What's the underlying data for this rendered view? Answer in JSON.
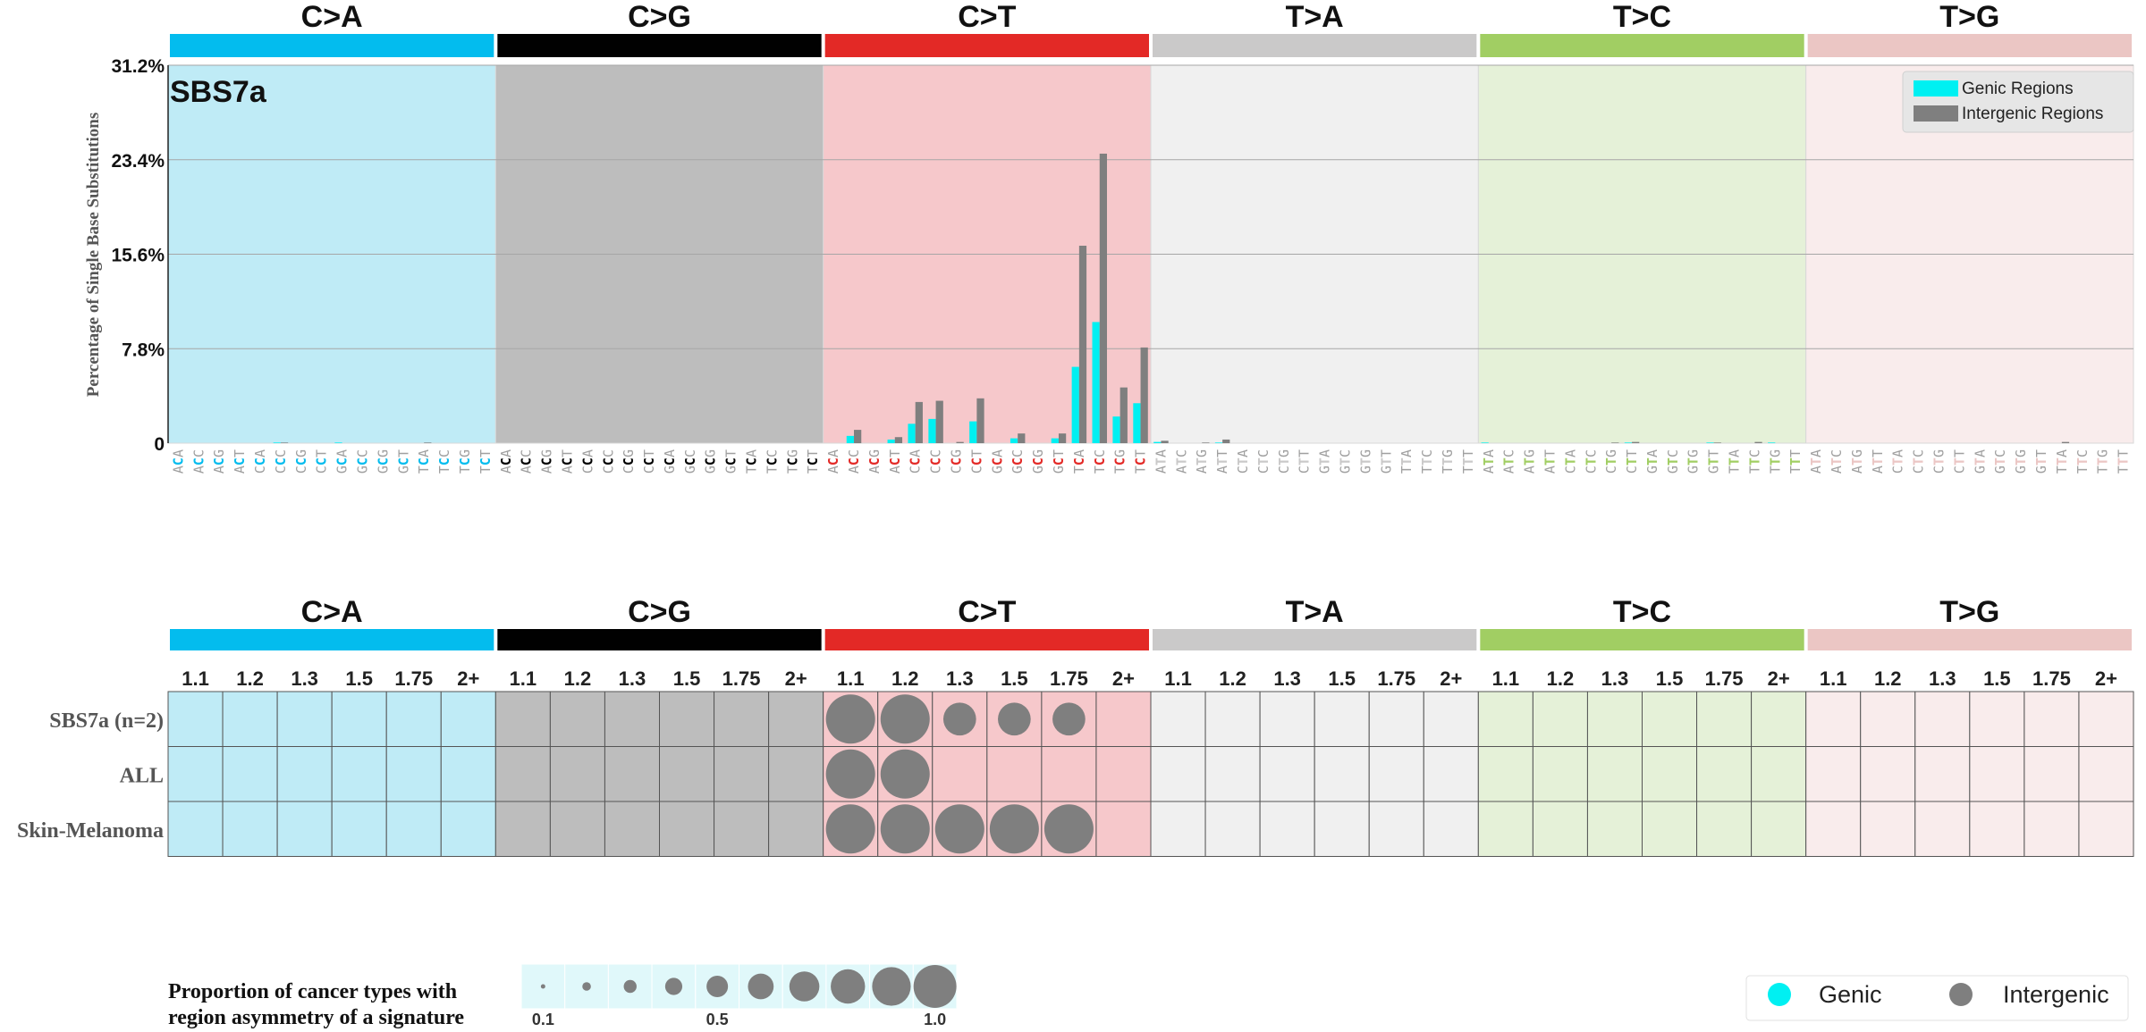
{
  "chart_data": {
    "type": "bar",
    "signature_label": "SBS7a",
    "ylabel": "Percentage of Single Base Substitutions",
    "yticks": [
      "0",
      "7.8%",
      "15.6%",
      "23.4%",
      "31.2%"
    ],
    "ylim": [
      0,
      31.2
    ],
    "grid": true,
    "legend_position": "top-right",
    "mutation_types": [
      {
        "label": "C>A",
        "color": "#03bcee",
        "bg": "#bfebf6",
        "ref": "C"
      },
      {
        "label": "C>G",
        "color": "#010101",
        "bg": "#bdbdbd",
        "ref": "C"
      },
      {
        "label": "C>T",
        "color": "#e32926",
        "bg": "#f6c8cb",
        "ref": "C"
      },
      {
        "label": "T>A",
        "color": "#cac9c9",
        "bg": "#f0f0f0",
        "ref": "T"
      },
      {
        "label": "T>C",
        "color": "#a1ce63",
        "bg": "#e5f1d8",
        "ref": "T"
      },
      {
        "label": "T>G",
        "color": "#ebc6c4",
        "bg": "#f9ecec",
        "ref": "T"
      }
    ],
    "contexts": {
      "C": [
        "ACA",
        "ACC",
        "ACG",
        "ACT",
        "CCA",
        "CCC",
        "CCG",
        "CCT",
        "GCA",
        "GCC",
        "GCG",
        "GCT",
        "TCA",
        "TCC",
        "TCG",
        "TCT"
      ],
      "T": [
        "ATA",
        "ATC",
        "ATG",
        "ATT",
        "CTA",
        "CTC",
        "CTG",
        "CTT",
        "GTA",
        "GTC",
        "GTG",
        "GTT",
        "TTA",
        "TTC",
        "TTG",
        "TTT"
      ]
    },
    "series": [
      {
        "name": "Genic Regions",
        "color": "#00f0f2",
        "values": [
          0,
          0,
          0,
          0,
          0,
          0.05,
          0,
          0,
          0.05,
          0,
          0,
          0,
          0,
          0,
          0,
          0,
          0,
          0,
          0,
          0,
          0,
          0,
          0,
          0,
          0,
          0,
          0,
          0,
          0,
          0,
          0,
          0,
          0,
          0.6,
          0,
          0.3,
          1.6,
          2.0,
          0,
          1.8,
          0,
          0.4,
          0,
          0.4,
          6.3,
          10.0,
          2.2,
          3.3,
          0.1,
          0,
          0,
          0.05,
          0,
          0,
          0,
          0,
          0,
          0,
          0,
          0,
          0,
          0,
          0,
          0,
          0.05,
          0,
          0,
          0,
          0,
          0,
          0,
          0.05,
          0,
          0,
          0,
          0.05,
          0,
          0,
          0.05,
          0,
          0,
          0,
          0,
          0,
          0,
          0,
          0,
          0,
          0,
          0,
          0,
          0,
          0,
          0,
          0,
          0
        ]
      },
      {
        "name": "Intergenic Regions",
        "color": "#7f7f7f",
        "values": [
          0,
          0,
          0,
          0,
          0,
          0.05,
          0,
          0,
          0,
          0,
          0,
          0,
          0.05,
          0,
          0,
          0,
          0,
          0,
          0,
          0,
          0,
          0,
          0,
          0,
          0,
          0,
          0,
          0,
          0,
          0,
          0,
          0,
          0,
          1.1,
          0,
          0.5,
          3.4,
          3.5,
          0.1,
          3.7,
          0,
          0.8,
          0,
          0.8,
          16.3,
          23.9,
          4.6,
          7.9,
          0.2,
          0,
          0.05,
          0.3,
          0,
          0,
          0,
          0,
          0,
          0,
          0,
          0,
          0,
          0,
          0,
          0,
          0,
          0,
          0,
          0,
          0,
          0,
          0.05,
          0.1,
          0,
          0,
          0,
          0.05,
          0,
          0.1,
          0,
          0,
          0,
          0,
          0,
          0,
          0,
          0,
          0,
          0,
          0,
          0,
          0,
          0,
          0.1,
          0,
          0,
          0
        ]
      }
    ],
    "grid_panel": {
      "columns": [
        "1.1",
        "1.2",
        "1.3",
        "1.5",
        "1.75",
        "2+"
      ],
      "rows": [
        {
          "label": "SBS7a (n=2)",
          "ct": [
            0.9,
            0.9,
            0.4,
            0.4,
            0.4,
            0
          ]
        },
        {
          "label": "ALL",
          "ct": [
            0.9,
            0.9,
            0,
            0,
            0,
            0
          ]
        },
        {
          "label": "Skin-Melanoma",
          "ct": [
            0.9,
            0.9,
            0.9,
            0.9,
            0.9,
            0
          ]
        }
      ]
    },
    "proportion_legend": {
      "title_line1": "Proportion of cancer types with",
      "title_line2": "region asymmetry of a signature",
      "values": [
        0.1,
        0.2,
        0.3,
        0.4,
        0.5,
        0.6,
        0.7,
        0.8,
        0.9,
        1.0
      ],
      "ticks": [
        "0.1",
        "0.5",
        "1.0"
      ]
    },
    "region_legend": [
      {
        "label": "Genic",
        "color": "#00f0f2"
      },
      {
        "label": "Intergenic",
        "color": "#7f7f7f"
      }
    ]
  }
}
